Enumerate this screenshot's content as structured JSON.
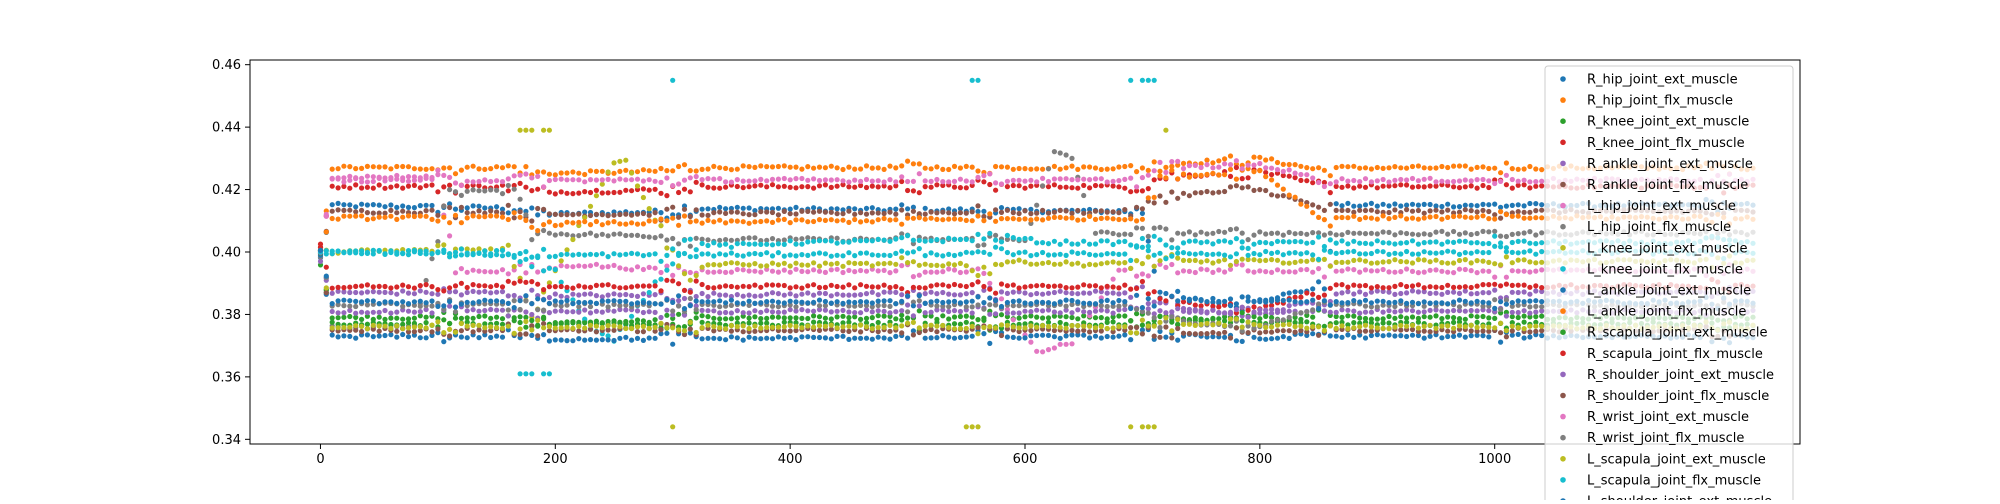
{
  "chart_data": {
    "type": "scatter",
    "title": "",
    "xlabel": "",
    "ylabel": "",
    "xlim": [
      -60,
      1260
    ],
    "ylim": [
      0.3385,
      0.4615
    ],
    "x_ticks": [
      0,
      200,
      400,
      600,
      800,
      1000
    ],
    "x_tick_labels": [
      "0",
      "200",
      "400",
      "600",
      "800",
      "1000"
    ],
    "y_ticks": [
      0.34,
      0.36,
      0.38,
      0.4,
      0.42,
      0.44,
      0.46
    ],
    "y_tick_labels": [
      "0.34",
      "0.36",
      "0.38",
      "0.40",
      "0.42",
      "0.44",
      "0.46"
    ],
    "grid": false,
    "legend_position": "upper right",
    "x_step": 5,
    "series": [
      {
        "name": "R_hip_joint_ext_muscle",
        "color": "#1f77b4",
        "segments": [
          [
            0,
            0.398
          ],
          [
            10,
            0.415
          ],
          [
            170,
            0.414
          ],
          [
            180,
            0.412
          ],
          [
            300,
            0.413
          ],
          [
            310,
            0.414
          ],
          [
            700,
            0.413
          ],
          [
            715,
            0.386
          ],
          [
            780,
            0.383
          ],
          [
            855,
            0.389
          ],
          [
            865,
            0.415
          ],
          [
            1220,
            0.415
          ]
        ]
      },
      {
        "name": "R_hip_joint_flx_muscle",
        "color": "#ff7f0e",
        "segments": [
          [
            0,
            0.4
          ],
          [
            10,
            0.427
          ],
          [
            170,
            0.427
          ],
          [
            180,
            0.425
          ],
          [
            300,
            0.426
          ],
          [
            310,
            0.427
          ],
          [
            700,
            0.427
          ],
          [
            715,
            0.428
          ],
          [
            800,
            0.43
          ],
          [
            855,
            0.426
          ],
          [
            865,
            0.427
          ],
          [
            1220,
            0.427
          ]
        ]
      },
      {
        "name": "R_knee_joint_ext_muscle",
        "color": "#2ca02c",
        "segments": [
          [
            0,
            0.396
          ],
          [
            10,
            0.379
          ],
          [
            170,
            0.379
          ],
          [
            180,
            0.377
          ],
          [
            300,
            0.378
          ],
          [
            310,
            0.379
          ],
          [
            700,
            0.379
          ],
          [
            715,
            0.379
          ],
          [
            800,
            0.377
          ],
          [
            855,
            0.38
          ],
          [
            865,
            0.379
          ],
          [
            1220,
            0.379
          ]
        ]
      },
      {
        "name": "R_knee_joint_flx_muscle",
        "color": "#d62728",
        "segments": [
          [
            0,
            0.402
          ],
          [
            10,
            0.421
          ],
          [
            170,
            0.421
          ],
          [
            180,
            0.419
          ],
          [
            300,
            0.42
          ],
          [
            310,
            0.421
          ],
          [
            700,
            0.421
          ],
          [
            715,
            0.424
          ],
          [
            800,
            0.426
          ],
          [
            855,
            0.421
          ],
          [
            865,
            0.421
          ],
          [
            1220,
            0.421
          ]
        ]
      },
      {
        "name": "R_ankle_joint_ext_muscle",
        "color": "#9467bd",
        "segments": [
          [
            0,
            0.397
          ],
          [
            10,
            0.387
          ],
          [
            170,
            0.387
          ],
          [
            180,
            0.386
          ],
          [
            700,
            0.387
          ],
          [
            715,
            0.382
          ],
          [
            800,
            0.38
          ],
          [
            855,
            0.385
          ],
          [
            865,
            0.387
          ],
          [
            1220,
            0.387
          ]
        ]
      },
      {
        "name": "R_ankle_joint_flx_muscle",
        "color": "#8c564b",
        "segments": [
          [
            0,
            0.401
          ],
          [
            10,
            0.413
          ],
          [
            170,
            0.413
          ],
          [
            180,
            0.412
          ],
          [
            700,
            0.413
          ],
          [
            715,
            0.418
          ],
          [
            800,
            0.42
          ],
          [
            855,
            0.414
          ],
          [
            865,
            0.413
          ],
          [
            1220,
            0.413
          ]
        ]
      },
      {
        "name": "L_hip_joint_ext_muscle",
        "color": "#e377c2",
        "segments": [
          [
            0,
            0.4
          ],
          [
            10,
            0.424
          ],
          [
            100,
            0.424
          ],
          [
            115,
            0.394
          ],
          [
            180,
            0.394
          ],
          [
            220,
            0.396
          ],
          [
            300,
            0.394
          ],
          [
            560,
            0.394
          ],
          [
            610,
            0.368
          ],
          [
            640,
            0.371
          ],
          [
            680,
            0.394
          ],
          [
            715,
            0.394
          ],
          [
            800,
            0.394
          ],
          [
            1220,
            0.394
          ]
        ]
      },
      {
        "name": "L_hip_joint_flx_muscle",
        "color": "#7f7f7f",
        "segments": [
          [
            0,
            0.399
          ],
          [
            10,
            0.376
          ],
          [
            80,
            0.376
          ],
          [
            110,
            0.42
          ],
          [
            170,
            0.419
          ],
          [
            180,
            0.406
          ],
          [
            300,
            0.405
          ],
          [
            310,
            0.404
          ],
          [
            600,
            0.404
          ],
          [
            625,
            0.432
          ],
          [
            640,
            0.43
          ],
          [
            660,
            0.406
          ],
          [
            715,
            0.406
          ],
          [
            800,
            0.406
          ],
          [
            1220,
            0.406
          ]
        ]
      },
      {
        "name": "L_knee_joint_ext_muscle",
        "color": "#bcbd22",
        "segments": [
          [
            0,
            0.4
          ],
          [
            160,
            0.401
          ],
          [
            180,
            0.38
          ],
          [
            250,
            0.429
          ],
          [
            260,
            0.429
          ],
          [
            310,
            0.392
          ],
          [
            330,
            0.396
          ],
          [
            550,
            0.396
          ],
          [
            560,
            0.393
          ],
          [
            580,
            0.397
          ],
          [
            660,
            0.396
          ],
          [
            715,
            0.397
          ],
          [
            1220,
            0.397
          ]
        ]
      },
      {
        "name": "L_knee_joint_flx_muscle",
        "color": "#17becf",
        "segments": [
          [
            0,
            0.4
          ],
          [
            170,
            0.399
          ],
          [
            200,
            0.394
          ],
          [
            230,
            0.375
          ],
          [
            250,
            0.372
          ],
          [
            300,
            0.398
          ],
          [
            310,
            0.403
          ],
          [
            350,
            0.402
          ],
          [
            400,
            0.403
          ],
          [
            550,
            0.404
          ],
          [
            580,
            0.405
          ],
          [
            620,
            0.403
          ],
          [
            715,
            0.403
          ],
          [
            1220,
            0.403
          ]
        ]
      },
      {
        "name": "L_ankle_joint_ext_muscle",
        "color": "#1f77b4",
        "segments": [
          [
            0,
            0.399
          ],
          [
            10,
            0.373
          ],
          [
            170,
            0.373
          ],
          [
            180,
            0.372
          ],
          [
            700,
            0.373
          ],
          [
            715,
            0.374
          ],
          [
            800,
            0.372
          ],
          [
            855,
            0.374
          ],
          [
            865,
            0.373
          ],
          [
            1220,
            0.373
          ]
        ]
      },
      {
        "name": "L_ankle_joint_flx_muscle",
        "color": "#ff7f0e",
        "segments": [
          [
            0,
            0.401
          ],
          [
            10,
            0.411
          ],
          [
            170,
            0.411
          ],
          [
            180,
            0.409
          ],
          [
            700,
            0.411
          ],
          [
            715,
            0.424
          ],
          [
            800,
            0.426
          ],
          [
            855,
            0.41
          ],
          [
            865,
            0.411
          ],
          [
            1220,
            0.411
          ]
        ]
      },
      {
        "name": "R_scapula_joint_ext_muscle",
        "color": "#2ca02c",
        "segments": [
          [
            0,
            0.399
          ],
          [
            10,
            0.377
          ],
          [
            700,
            0.377
          ],
          [
            715,
            0.378
          ],
          [
            800,
            0.379
          ],
          [
            855,
            0.377
          ],
          [
            865,
            0.377
          ],
          [
            1220,
            0.377
          ]
        ]
      },
      {
        "name": "R_scapula_joint_flx_muscle",
        "color": "#d62728",
        "segments": [
          [
            0,
            0.401
          ],
          [
            10,
            0.389
          ],
          [
            700,
            0.389
          ],
          [
            715,
            0.384
          ],
          [
            800,
            0.382
          ],
          [
            855,
            0.388
          ],
          [
            865,
            0.389
          ],
          [
            1220,
            0.389
          ]
        ]
      },
      {
        "name": "R_shoulder_joint_ext_muscle",
        "color": "#9467bd",
        "segments": [
          [
            0,
            0.4
          ],
          [
            10,
            0.381
          ],
          [
            700,
            0.381
          ],
          [
            715,
            0.381
          ],
          [
            855,
            0.381
          ],
          [
            1220,
            0.381
          ]
        ]
      },
      {
        "name": "R_shoulder_joint_flx_muscle",
        "color": "#8c564b",
        "segments": [
          [
            0,
            0.4
          ],
          [
            10,
            0.375
          ],
          [
            700,
            0.375
          ],
          [
            715,
            0.374
          ],
          [
            855,
            0.375
          ],
          [
            1220,
            0.375
          ]
        ]
      },
      {
        "name": "R_wrist_joint_ext_muscle",
        "color": "#e377c2",
        "segments": [
          [
            0,
            0.4
          ],
          [
            10,
            0.423
          ],
          [
            700,
            0.423
          ],
          [
            715,
            0.427
          ],
          [
            800,
            0.428
          ],
          [
            855,
            0.423
          ],
          [
            865,
            0.423
          ],
          [
            1220,
            0.423
          ]
        ]
      },
      {
        "name": "R_wrist_joint_flx_muscle",
        "color": "#7f7f7f",
        "segments": [
          [
            0,
            0.4
          ],
          [
            10,
            0.383
          ],
          [
            700,
            0.383
          ],
          [
            715,
            0.378
          ],
          [
            800,
            0.376
          ],
          [
            855,
            0.383
          ],
          [
            865,
            0.383
          ],
          [
            1220,
            0.383
          ]
        ]
      },
      {
        "name": "L_scapula_joint_ext_muscle",
        "color": "#bcbd22",
        "segments": [
          [
            0,
            0.4
          ],
          [
            10,
            0.376
          ],
          [
            700,
            0.376
          ],
          [
            715,
            0.377
          ],
          [
            855,
            0.376
          ],
          [
            1220,
            0.376
          ]
        ]
      },
      {
        "name": "L_scapula_joint_flx_muscle",
        "color": "#17becf",
        "segments": [
          [
            0,
            0.4
          ],
          [
            10,
            0.4
          ],
          [
            170,
            0.4
          ],
          [
            180,
            0.399
          ],
          [
            1220,
            0.4
          ]
        ]
      },
      {
        "name": "L_shoulder_joint_ext_muscle",
        "color": "#1f77b4",
        "segments": [
          [
            0,
            0.4
          ],
          [
            10,
            0.384
          ],
          [
            700,
            0.384
          ],
          [
            715,
            0.385
          ],
          [
            855,
            0.384
          ],
          [
            1220,
            0.384
          ]
        ]
      }
    ],
    "extra_points": [
      {
        "color": "#bcbd22",
        "points": [
          [
            170,
            0.439
          ],
          [
            175,
            0.439
          ],
          [
            180,
            0.439
          ],
          [
            190,
            0.439
          ],
          [
            195,
            0.439
          ],
          [
            300,
            0.344
          ],
          [
            550,
            0.344
          ],
          [
            555,
            0.344
          ],
          [
            560,
            0.344
          ],
          [
            690,
            0.344
          ],
          [
            700,
            0.344
          ],
          [
            705,
            0.344
          ],
          [
            710,
            0.344
          ],
          [
            720,
            0.439
          ]
        ]
      },
      {
        "color": "#17becf",
        "points": [
          [
            300,
            0.455
          ],
          [
            555,
            0.455
          ],
          [
            560,
            0.455
          ],
          [
            690,
            0.455
          ],
          [
            700,
            0.455
          ],
          [
            705,
            0.455
          ],
          [
            710,
            0.455
          ],
          [
            170,
            0.361
          ],
          [
            175,
            0.361
          ],
          [
            180,
            0.361
          ],
          [
            190,
            0.361
          ],
          [
            195,
            0.361
          ]
        ]
      }
    ]
  }
}
